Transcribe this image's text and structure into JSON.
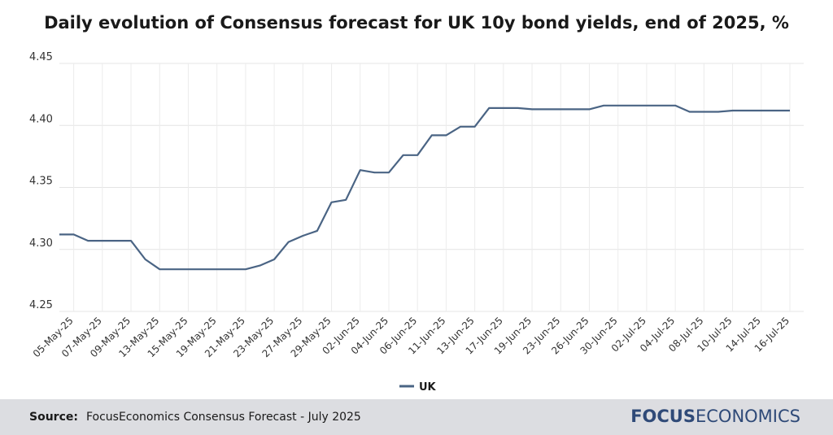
{
  "chart_data": {
    "type": "line",
    "title": "Daily evolution of Consensus forecast for UK 10y bond yields, end of 2025, %",
    "xlabel": "",
    "ylabel": "",
    "ylim": [
      4.25,
      4.45
    ],
    "yticks": [
      "4.25",
      "4.30",
      "4.35",
      "4.40",
      "4.45"
    ],
    "grid": true,
    "legend_position": "bottom",
    "x": [
      "02-May-25",
      "05-May-25",
      "06-May-25",
      "07-May-25",
      "08-May-25",
      "09-May-25",
      "12-May-25",
      "13-May-25",
      "14-May-25",
      "15-May-25",
      "16-May-25",
      "19-May-25",
      "20-May-25",
      "21-May-25",
      "22-May-25",
      "23-May-25",
      "26-May-25",
      "27-May-25",
      "28-May-25",
      "29-May-25",
      "30-May-25",
      "02-Jun-25",
      "03-Jun-25",
      "04-Jun-25",
      "05-Jun-25",
      "06-Jun-25",
      "10-Jun-25",
      "11-Jun-25",
      "12-Jun-25",
      "13-Jun-25",
      "16-Jun-25",
      "17-Jun-25",
      "18-Jun-25",
      "19-Jun-25",
      "20-Jun-25",
      "23-Jun-25",
      "25-Jun-25",
      "26-Jun-25",
      "27-Jun-25",
      "30-Jun-25",
      "01-Jul-25",
      "02-Jul-25",
      "03-Jul-25",
      "04-Jul-25",
      "07-Jul-25",
      "08-Jul-25",
      "09-Jul-25",
      "10-Jul-25",
      "11-Jul-25",
      "14-Jul-25",
      "15-Jul-25",
      "16-Jul-25"
    ],
    "x_tick_labels": [
      "05-May-25",
      "07-May-25",
      "09-May-25",
      "13-May-25",
      "15-May-25",
      "19-May-25",
      "21-May-25",
      "23-May-25",
      "27-May-25",
      "29-May-25",
      "02-Jun-25",
      "04-Jun-25",
      "06-Jun-25",
      "11-Jun-25",
      "13-Jun-25",
      "17-Jun-25",
      "19-Jun-25",
      "23-Jun-25",
      "26-Jun-25",
      "30-Jun-25",
      "02-Jul-25",
      "04-Jul-25",
      "08-Jul-25",
      "10-Jul-25",
      "14-Jul-25",
      "16-Jul-25"
    ],
    "series": [
      {
        "name": "UK",
        "color": "#4a6484",
        "values": [
          4.312,
          4.312,
          4.307,
          4.307,
          4.307,
          4.307,
          4.292,
          4.284,
          4.284,
          4.284,
          4.284,
          4.284,
          4.284,
          4.284,
          4.287,
          4.292,
          4.306,
          4.311,
          4.315,
          4.338,
          4.34,
          4.364,
          4.362,
          4.362,
          4.376,
          4.376,
          4.392,
          4.392,
          4.399,
          4.399,
          4.414,
          4.414,
          4.414,
          4.413,
          4.413,
          4.413,
          4.413,
          4.413,
          4.416,
          4.416,
          4.416,
          4.416,
          4.416,
          4.416,
          4.411,
          4.411,
          4.411,
          4.412,
          4.412,
          4.412,
          4.412,
          4.412
        ]
      }
    ]
  },
  "footer": {
    "source_label": "Source:",
    "source_text": "FocusEconomics Consensus Forecast - July 2025",
    "brand_part1": "FOCUS",
    "brand_part2": "ECONOMICS"
  }
}
